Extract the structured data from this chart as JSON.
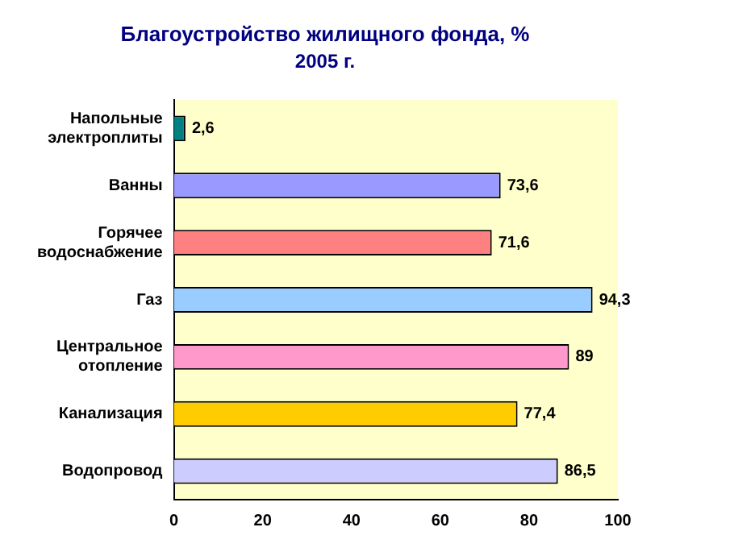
{
  "chart_data": {
    "type": "bar",
    "orientation": "horizontal",
    "title": "Благоустройство жилищного фонда, %",
    "subtitle": "2005 г.",
    "categories": [
      "Напольные электроплиты",
      "Ванны",
      "Горячее водоснабжение",
      "Газ",
      "Центральное отопление",
      "Канализация",
      "Водопровод"
    ],
    "values": [
      2.6,
      73.6,
      71.6,
      94.3,
      89,
      77.4,
      86.5
    ],
    "colors": [
      "#008080",
      "#9999ff",
      "#ff8080",
      "#99ccff",
      "#ff99cc",
      "#ffcc00",
      "#ccccff"
    ],
    "value_labels": [
      "2,6",
      "73,6",
      "71,6",
      "94,3",
      "89",
      "77,4",
      "86,5"
    ],
    "xlim": [
      0,
      100
    ],
    "xticks": [
      0,
      20,
      40,
      60,
      80,
      100
    ],
    "grid": false,
    "legend": false
  }
}
